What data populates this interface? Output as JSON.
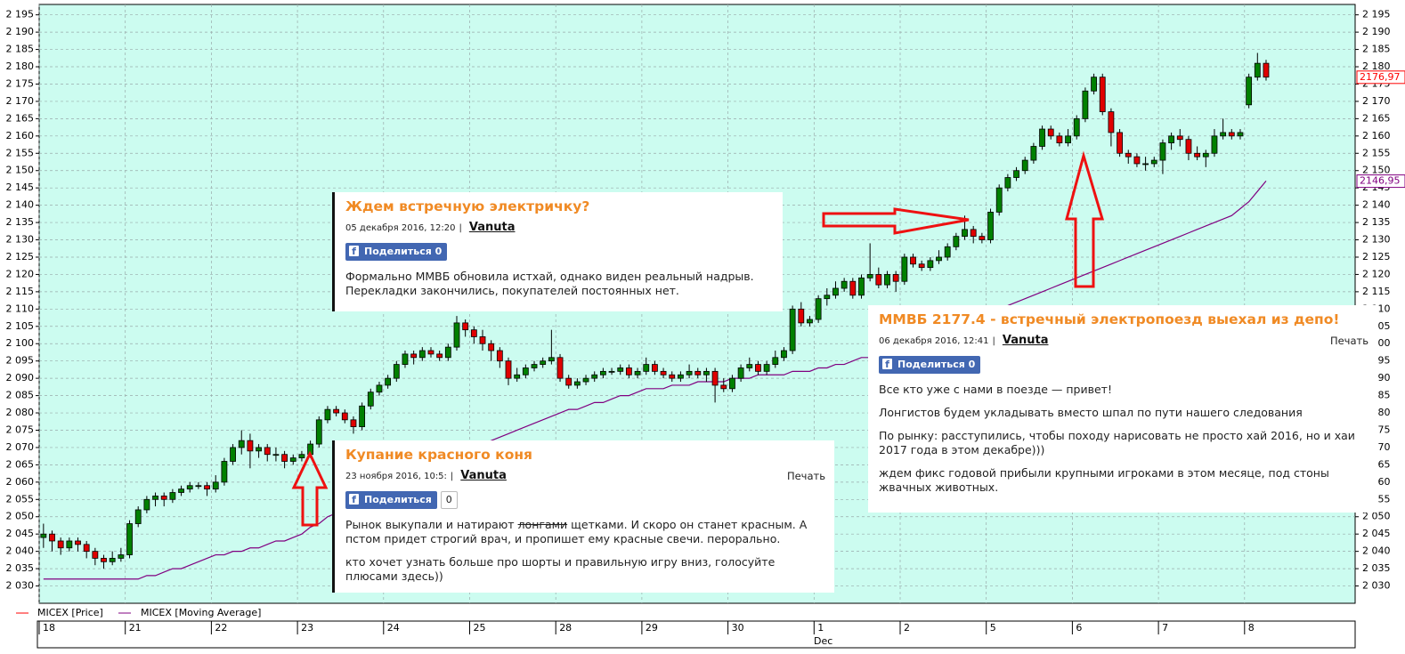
{
  "chart_data": {
    "type": "candlestick",
    "series": [
      {
        "name": "MICEX [Price]",
        "color": "#ff0000"
      },
      {
        "name": "MICEX [Moving Average]",
        "color": "#800080"
      }
    ],
    "up_color": "#008000",
    "down_color": "#e00000",
    "grid": true,
    "ylim": [
      2025,
      2198
    ],
    "yticks": [
      {
        "value": 2030,
        "label": "2 030"
      },
      {
        "value": 2035,
        "label": "2 035"
      },
      {
        "value": 2040,
        "label": "2 040"
      },
      {
        "value": 2045,
        "label": "2 045"
      },
      {
        "value": 2050,
        "label": "2 050"
      },
      {
        "value": 2055,
        "label": "2 055"
      },
      {
        "value": 2060,
        "label": "2 060"
      },
      {
        "value": 2065,
        "label": "2 065"
      },
      {
        "value": 2070,
        "label": "2 070"
      },
      {
        "value": 2075,
        "label": "2 075"
      },
      {
        "value": 2080,
        "label": "2 080"
      },
      {
        "value": 2085,
        "label": "2 085"
      },
      {
        "value": 2090,
        "label": "2 090"
      },
      {
        "value": 2095,
        "label": "2 095"
      },
      {
        "value": 2100,
        "label": "2 100"
      },
      {
        "value": 2105,
        "label": "2 105"
      },
      {
        "value": 2110,
        "label": "2 110"
      },
      {
        "value": 2115,
        "label": "2 115"
      },
      {
        "value": 2120,
        "label": "2 120"
      },
      {
        "value": 2125,
        "label": "2 125"
      },
      {
        "value": 2130,
        "label": "2 130"
      },
      {
        "value": 2135,
        "label": "2 135"
      },
      {
        "value": 2140,
        "label": "2 140"
      },
      {
        "value": 2145,
        "label": "2 145"
      },
      {
        "value": 2150,
        "label": "2 150"
      },
      {
        "value": 2155,
        "label": "2 155"
      },
      {
        "value": 2160,
        "label": "2 160"
      },
      {
        "value": 2165,
        "label": "2 165"
      },
      {
        "value": 2170,
        "label": "2 170"
      },
      {
        "value": 2175,
        "label": "2 175"
      },
      {
        "value": 2180,
        "label": "2 180"
      },
      {
        "value": 2185,
        "label": "2 185"
      },
      {
        "value": 2190,
        "label": "2 190"
      },
      {
        "value": 2195,
        "label": "2 195"
      }
    ],
    "categories": [
      "18",
      null,
      null,
      null,
      null,
      null,
      null,
      null,
      null,
      null,
      "21",
      null,
      null,
      null,
      null,
      null,
      null,
      null,
      null,
      null,
      "22",
      null,
      null,
      null,
      null,
      null,
      null,
      null,
      null,
      null,
      "23",
      null,
      null,
      null,
      null,
      null,
      null,
      null,
      null,
      null,
      "24",
      null,
      null,
      null,
      null,
      null,
      null,
      null,
      null,
      null,
      "25",
      null,
      null,
      null,
      null,
      null,
      null,
      null,
      null,
      null,
      "28",
      null,
      null,
      null,
      null,
      null,
      null,
      null,
      null,
      null,
      "29",
      null,
      null,
      null,
      null,
      null,
      null,
      null,
      null,
      null,
      "30",
      null,
      null,
      null,
      null,
      null,
      null,
      null,
      null,
      null,
      "1",
      null,
      null,
      null,
      null,
      null,
      null,
      null,
      null,
      null,
      "2",
      null,
      null,
      null,
      null,
      null,
      null,
      null,
      null,
      null,
      "5",
      null,
      null,
      null,
      null,
      null,
      null,
      null,
      null,
      null,
      "6",
      null,
      null,
      null,
      null,
      null,
      null,
      null,
      null,
      null,
      "7",
      null,
      null,
      null,
      null,
      null,
      null,
      null,
      null,
      null,
      "8",
      null,
      null
    ],
    "month_label": "Dec",
    "ohlc": [
      [
        2044,
        2048,
        2041,
        2045
      ],
      [
        2045,
        2046,
        2040,
        2043
      ],
      [
        2043,
        2044,
        2039,
        2041
      ],
      [
        2041,
        2044,
        2040,
        2043
      ],
      [
        2043,
        2044,
        2040,
        2042
      ],
      [
        2042,
        2043,
        2038,
        2040
      ],
      [
        2040,
        2041,
        2036,
        2038
      ],
      [
        2038,
        2039,
        2035,
        2037
      ],
      [
        2037,
        2040,
        2036,
        2038
      ],
      [
        2038,
        2041,
        2037,
        2039
      ],
      [
        2039,
        2049,
        2038,
        2048
      ],
      [
        2048,
        2053,
        2047,
        2052
      ],
      [
        2052,
        2056,
        2051,
        2055
      ],
      [
        2055,
        2057,
        2053,
        2056
      ],
      [
        2056,
        2057,
        2053,
        2055
      ],
      [
        2055,
        2058,
        2054,
        2057
      ],
      [
        2057,
        2059,
        2056,
        2058
      ],
      [
        2058,
        2060,
        2057,
        2059
      ],
      [
        2059,
        2060,
        2058,
        2059
      ],
      [
        2059,
        2060,
        2056,
        2058
      ],
      [
        2058,
        2062,
        2057,
        2060
      ],
      [
        2060,
        2067,
        2059,
        2066
      ],
      [
        2066,
        2071,
        2065,
        2070
      ],
      [
        2070,
        2075,
        2068,
        2072
      ],
      [
        2072,
        2074,
        2064,
        2069
      ],
      [
        2069,
        2071,
        2067,
        2070
      ],
      [
        2070,
        2071,
        2066,
        2068
      ],
      [
        2068,
        2070,
        2066,
        2068
      ],
      [
        2068,
        2069,
        2064,
        2066
      ],
      [
        2066,
        2068,
        2065,
        2067
      ],
      [
        2067,
        2069,
        2066,
        2068
      ],
      [
        2068,
        2072,
        2067,
        2071
      ],
      [
        2071,
        2079,
        2070,
        2078
      ],
      [
        2078,
        2082,
        2077,
        2081
      ],
      [
        2081,
        2082,
        2079,
        2080
      ],
      [
        2080,
        2081,
        2077,
        2078
      ],
      [
        2078,
        2079,
        2074,
        2076
      ],
      [
        2076,
        2083,
        2075,
        2082
      ],
      [
        2082,
        2087,
        2081,
        2086
      ],
      [
        2086,
        2089,
        2085,
        2088
      ],
      [
        2088,
        2091,
        2087,
        2090
      ],
      [
        2090,
        2095,
        2089,
        2094
      ],
      [
        2094,
        2098,
        2093,
        2097
      ],
      [
        2097,
        2098,
        2094,
        2096
      ],
      [
        2096,
        2099,
        2095,
        2098
      ],
      [
        2098,
        2099,
        2096,
        2097
      ],
      [
        2097,
        2098,
        2095,
        2096
      ],
      [
        2096,
        2100,
        2095,
        2099
      ],
      [
        2099,
        2108,
        2098,
        2106
      ],
      [
        2106,
        2107,
        2102,
        2104
      ],
      [
        2104,
        2105,
        2100,
        2102
      ],
      [
        2102,
        2104,
        2098,
        2100
      ],
      [
        2100,
        2101,
        2095,
        2098
      ],
      [
        2098,
        2099,
        2093,
        2095
      ],
      [
        2095,
        2096,
        2088,
        2090
      ],
      [
        2090,
        2093,
        2089,
        2091
      ],
      [
        2091,
        2094,
        2090,
        2093
      ],
      [
        2093,
        2095,
        2092,
        2094
      ],
      [
        2094,
        2096,
        2093,
        2095
      ],
      [
        2095,
        2104,
        2094,
        2096
      ],
      [
        2096,
        2097,
        2089,
        2090
      ],
      [
        2090,
        2091,
        2087,
        2088
      ],
      [
        2088,
        2090,
        2087,
        2089
      ],
      [
        2089,
        2091,
        2088,
        2090
      ],
      [
        2090,
        2092,
        2089,
        2091
      ],
      [
        2091,
        2093,
        2090,
        2092
      ],
      [
        2092,
        2093,
        2091,
        2092
      ],
      [
        2092,
        2094,
        2091,
        2093
      ],
      [
        2093,
        2094,
        2090,
        2091
      ],
      [
        2091,
        2093,
        2090,
        2092
      ],
      [
        2092,
        2096,
        2091,
        2094
      ],
      [
        2094,
        2095,
        2091,
        2092
      ],
      [
        2092,
        2093,
        2090,
        2091
      ],
      [
        2091,
        2092,
        2089,
        2090
      ],
      [
        2090,
        2092,
        2089,
        2091
      ],
      [
        2091,
        2094,
        2090,
        2092
      ],
      [
        2092,
        2093,
        2090,
        2091
      ],
      [
        2091,
        2093,
        2089,
        2092
      ],
      [
        2092,
        2093,
        2083,
        2088
      ],
      [
        2088,
        2090,
        2086,
        2087
      ],
      [
        2087,
        2091,
        2086,
        2090
      ],
      [
        2090,
        2094,
        2089,
        2093
      ],
      [
        2093,
        2096,
        2092,
        2094
      ],
      [
        2094,
        2095,
        2091,
        2092
      ],
      [
        2092,
        2095,
        2091,
        2094
      ],
      [
        2094,
        2098,
        2093,
        2096
      ],
      [
        2096,
        2099,
        2095,
        2098
      ],
      [
        2098,
        2111,
        2097,
        2110
      ],
      [
        2110,
        2112,
        2105,
        2106
      ],
      [
        2106,
        2108,
        2105,
        2107
      ],
      [
        2107,
        2114,
        2106,
        2113
      ],
      [
        2113,
        2116,
        2111,
        2114
      ],
      [
        2114,
        2118,
        2113,
        2116
      ],
      [
        2116,
        2119,
        2115,
        2118
      ],
      [
        2118,
        2119,
        2113,
        2114
      ],
      [
        2114,
        2120,
        2113,
        2119
      ],
      [
        2119,
        2129,
        2118,
        2120
      ],
      [
        2120,
        2122,
        2116,
        2117
      ],
      [
        2117,
        2121,
        2116,
        2120
      ],
      [
        2120,
        2121,
        2115,
        2118
      ],
      [
        2118,
        2126,
        2117,
        2125
      ],
      [
        2125,
        2126,
        2122,
        2123
      ],
      [
        2123,
        2124,
        2121,
        2122
      ],
      [
        2122,
        2125,
        2121,
        2124
      ],
      [
        2124,
        2127,
        2123,
        2125
      ],
      [
        2125,
        2129,
        2124,
        2128
      ],
      [
        2128,
        2132,
        2127,
        2131
      ],
      [
        2131,
        2137,
        2130,
        2133
      ],
      [
        2133,
        2134,
        2129,
        2131
      ],
      [
        2131,
        2132,
        2129,
        2130
      ],
      [
        2130,
        2139,
        2129,
        2138
      ],
      [
        2138,
        2146,
        2137,
        2145
      ],
      [
        2145,
        2149,
        2144,
        2148
      ],
      [
        2148,
        2151,
        2147,
        2150
      ],
      [
        2150,
        2154,
        2149,
        2153
      ],
      [
        2153,
        2158,
        2152,
        2157
      ],
      [
        2157,
        2163,
        2156,
        2162
      ],
      [
        2162,
        2163,
        2159,
        2160
      ],
      [
        2160,
        2161,
        2157,
        2158
      ],
      [
        2158,
        2162,
        2157,
        2160
      ],
      [
        2160,
        2166,
        2159,
        2165
      ],
      [
        2165,
        2174,
        2164,
        2173
      ],
      [
        2173,
        2178,
        2172,
        2177
      ],
      [
        2177,
        2178,
        2166,
        2167
      ],
      [
        2167,
        2168,
        2157,
        2161
      ],
      [
        2161,
        2162,
        2154,
        2155
      ],
      [
        2155,
        2156,
        2152,
        2154
      ],
      [
        2154,
        2155,
        2151,
        2152
      ],
      [
        2152,
        2154,
        2150,
        2152
      ],
      [
        2152,
        2154,
        2151,
        2153
      ],
      [
        2153,
        2159,
        2149,
        2158
      ],
      [
        2158,
        2161,
        2156,
        2160
      ],
      [
        2160,
        2162,
        2157,
        2159
      ],
      [
        2159,
        2160,
        2153,
        2155
      ],
      [
        2155,
        2157,
        2153,
        2154
      ],
      [
        2154,
        2156,
        2151,
        2155
      ],
      [
        2155,
        2162,
        2154,
        2160
      ],
      [
        2160,
        2165,
        2159,
        2161
      ],
      [
        2161,
        2162,
        2159,
        2160
      ],
      [
        2160,
        2162,
        2159,
        2161
      ],
      [
        2169,
        2178,
        2168,
        2177
      ],
      [
        2177,
        2184,
        2176,
        2181
      ],
      [
        2181,
        2182,
        2176,
        2177
      ]
    ],
    "ma": [
      2032,
      2032,
      2032,
      2032,
      2032,
      2032,
      2032,
      2032,
      2032,
      2032,
      2032,
      2032,
      2033,
      2033,
      2034,
      2035,
      2035,
      2036,
      2037,
      2038,
      2039,
      2039,
      2040,
      2040,
      2041,
      2041,
      2042,
      2043,
      2043,
      2044,
      2045,
      2047,
      2048,
      2050,
      2051,
      2053,
      2054,
      2056,
      2057,
      2059,
      2060,
      2061,
      2062,
      2063,
      2064,
      2065,
      2066,
      2067,
      2068,
      2069,
      2070,
      2071,
      2072,
      2073,
      2074,
      2075,
      2076,
      2077,
      2078,
      2079,
      2080,
      2081,
      2081,
      2082,
      2083,
      2083,
      2084,
      2085,
      2085,
      2086,
      2087,
      2087,
      2087,
      2088,
      2088,
      2088,
      2089,
      2089,
      2089,
      2089,
      2090,
      2090,
      2090,
      2091,
      2091,
      2091,
      2091,
      2092,
      2092,
      2092,
      2093,
      2093,
      2094,
      2094,
      2095,
      2096,
      2096,
      2097,
      2097,
      2098,
      2099,
      2100,
      2101,
      2102,
      2103,
      2104,
      2105,
      2106,
      2107,
      2108,
      2109,
      2110,
      2111,
      2112,
      2113,
      2114,
      2115,
      2116,
      2117,
      2118,
      2119,
      2120,
      2121,
      2122,
      2123,
      2124,
      2125,
      2126,
      2127,
      2128,
      2129,
      2130,
      2131,
      2132,
      2133,
      2134,
      2135,
      2136,
      2137,
      2139,
      2141,
      2144,
      2147
    ],
    "price_tags": [
      {
        "value": 2176.97,
        "label": "2176,97",
        "color": "#ff0000"
      },
      {
        "value": 2146.95,
        "label": "2146,95",
        "color": "#800080"
      }
    ]
  },
  "posts": [
    {
      "title": "Ждем встречную электричку?",
      "date": "05 декабря 2016, 12:20",
      "author": "Vanuta",
      "share": "Поделиться 0",
      "paragraphs": [
        "Формально ММВБ обновила истхай, однако  виден реальный надрыв. Перекладки закончились, покупателей постоянных нет."
      ]
    },
    {
      "title": "Купание красного коня",
      "date": "23 ноября 2016, 10:5:",
      "author": "Vanuta",
      "print": "Печать",
      "share": "Поделиться",
      "count": "0",
      "paragraphs": [
        [
          "Рынок выкупали и натирают ",
          "лонгами",
          " щетками. И скоро он станет красным. А пстом придет строгий врач, и пропишет ему красные свечи. перорально."
        ],
        "кто хочет узнать  больше про шорты и правильную игру вниз, голосуйте плюсами здесь))"
      ]
    },
    {
      "title": "ММВБ 2177.4 - встречный электропоезд выехал из депо!",
      "date": "06 декабря 2016, 12:41",
      "author": "Vanuta",
      "print": "Печать",
      "share": "Поделиться 0",
      "paragraphs": [
        "Все кто уже с нами в поезде — привет!",
        "Лонгистов будем укладывать вместо шпал по пути нашего следования",
        "По рынку: расступились, чтобы походу нарисовать не просто хай 2016, но и хаи 2017 года в этом декабре)))",
        "ждем фикс годовой прибыли крупными игроками в этом месяце, под стоны жвачных животных."
      ]
    }
  ]
}
